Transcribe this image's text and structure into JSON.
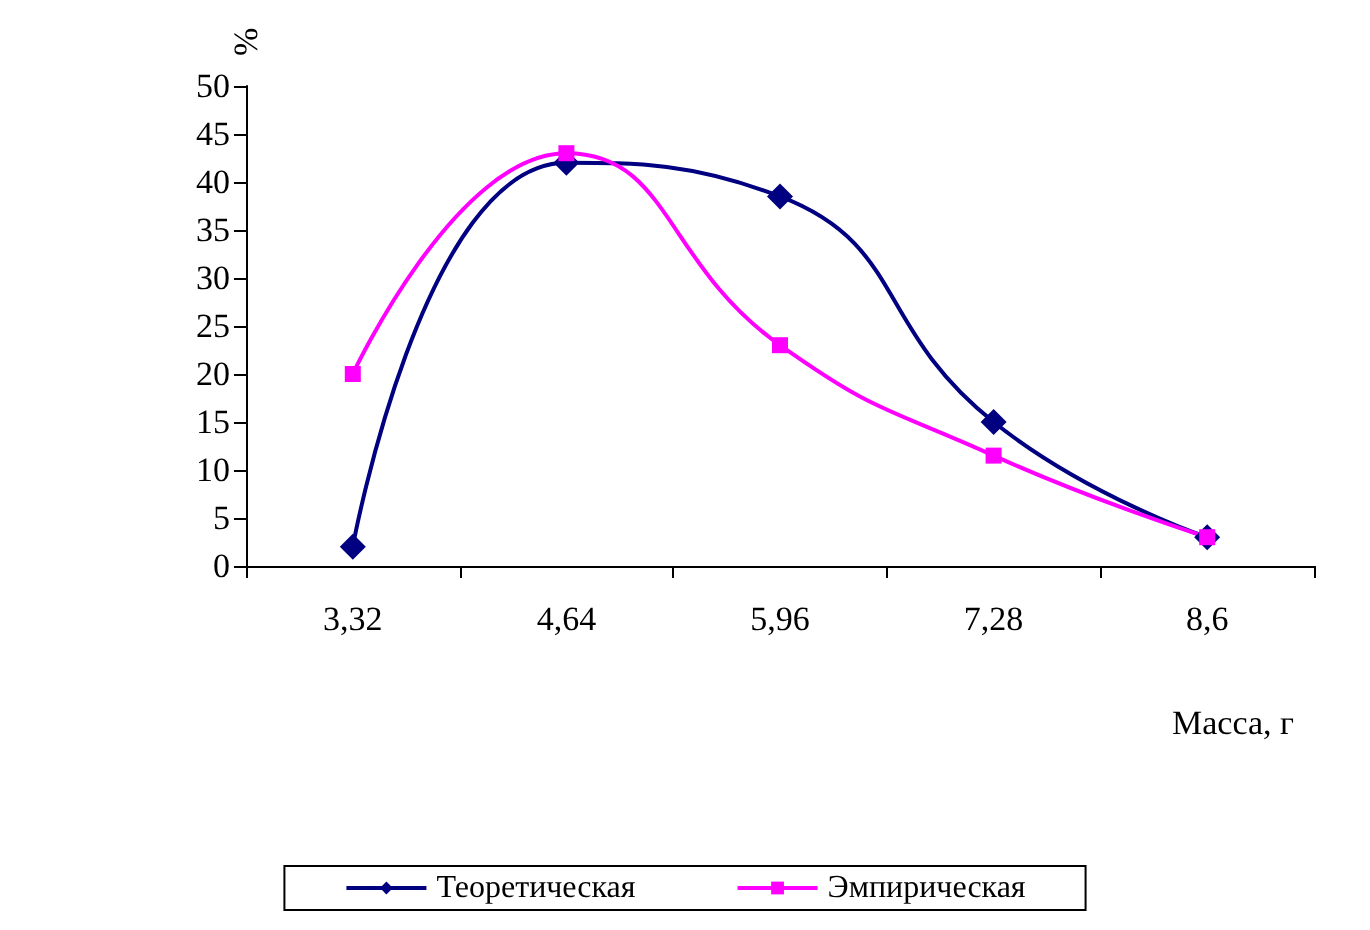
{
  "chart_data": {
    "type": "line",
    "xlabel": "Масса, г",
    "ylabel": "%",
    "categories": [
      "3,32",
      "4,64",
      "5,96",
      "7,28",
      "8,6"
    ],
    "series": [
      {
        "name": "Теоретическая",
        "color": "#000080",
        "marker": "diamond",
        "values": [
          2,
          42,
          38.5,
          15,
          3
        ]
      },
      {
        "name": "Эмпирическая",
        "color": "#ff00ff",
        "marker": "square",
        "values": [
          20,
          43,
          23,
          11.5,
          3
        ]
      }
    ],
    "ylim": [
      0,
      50
    ],
    "yticks": [
      0,
      5,
      10,
      15,
      20,
      25,
      30,
      35,
      40,
      45,
      50
    ],
    "grid": false,
    "legend": "bottom"
  }
}
